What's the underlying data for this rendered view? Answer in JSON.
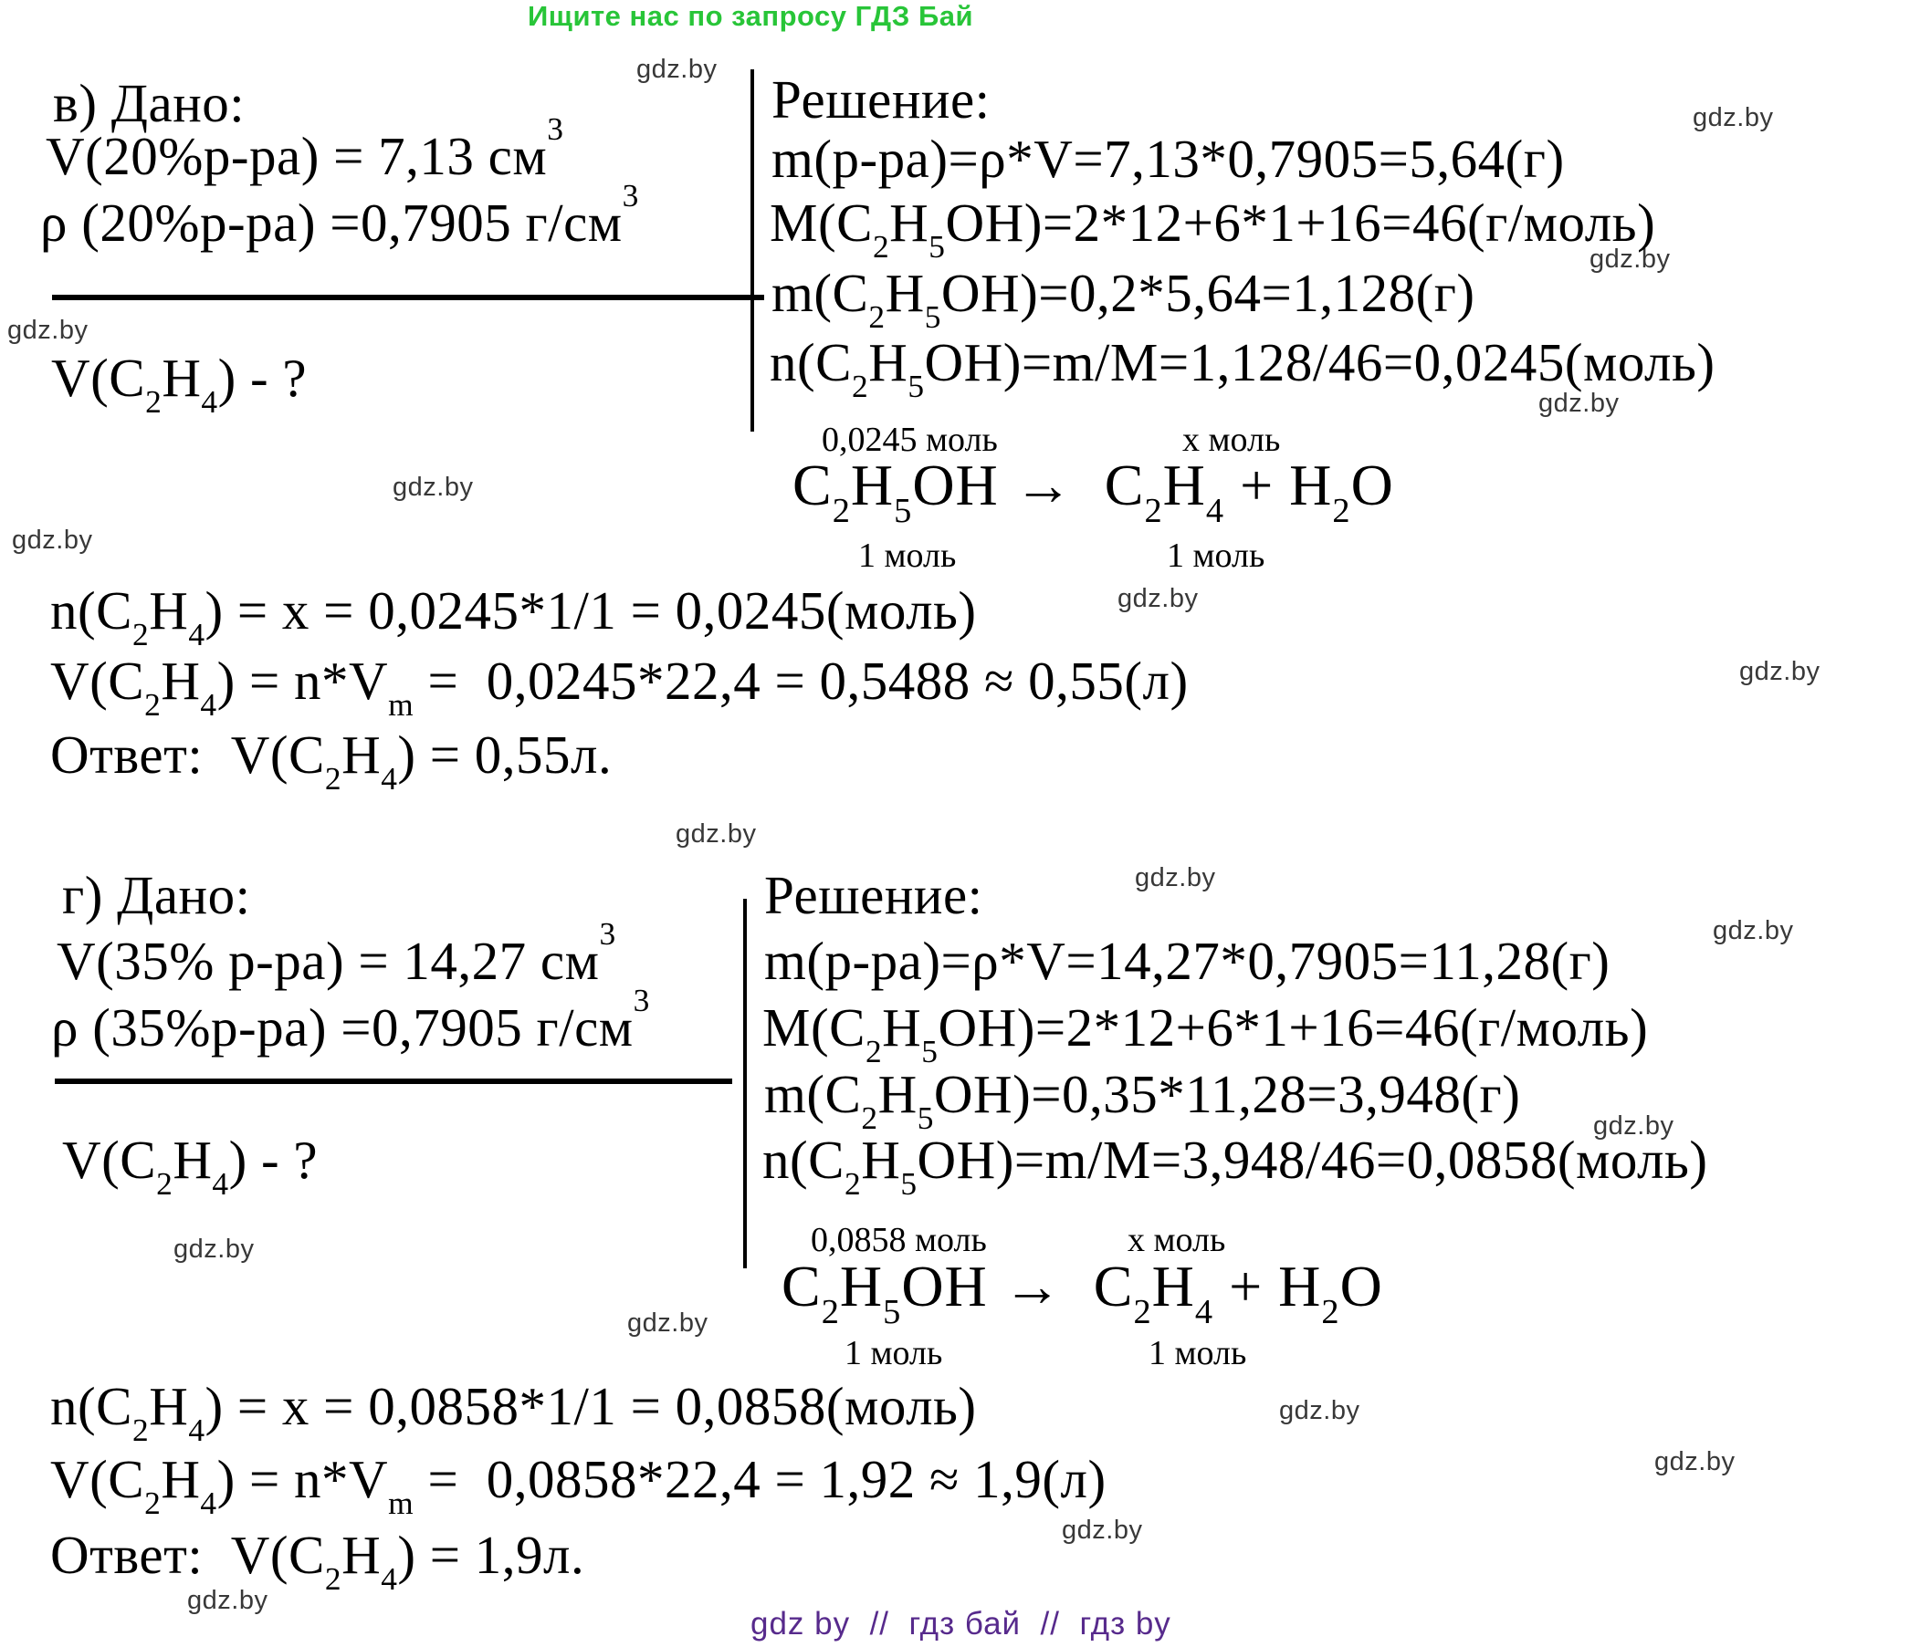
{
  "banner": {
    "text": "Ищите нас по запросу ГДЗ Бай",
    "color": "#28c538"
  },
  "watermark": {
    "text": "gdz.by",
    "color": "#383838"
  },
  "footer": {
    "text": "gdz by  //  гдз бай  //  гдз by",
    "color": "#572a8c"
  },
  "problems": [
    {
      "dano_label": "в) Дано:",
      "given": [
        "V(20%р-ра) = 7,13 см^3^",
        "ρ (20%р-ра) =0,7905 г/см^3^"
      ],
      "find": "V(C_2_H_4_) - ?",
      "solution_label": "Решение:",
      "steps": [
        "m(р-ра)=ρ*V=7,13*0,7905=5,64(г)",
        "M(C_2_H_5_OH)=2*12+6*1+16=46(г/моль)",
        "m(C_2_H_5_OH)=0,2*5,64=1,128(г)",
        "n(C_2_H_5_OH)=m/M=1,128/46=0,0245(моль)"
      ],
      "equation": {
        "above_left": "0,0245 моль",
        "above_right": "x моль",
        "formula": "C_2_H_5_OH →  C_2_H_4_ + H_2_O",
        "below_left": "1 моль",
        "below_right": "1 моль"
      },
      "derivation": [
        "n(C_2_H_4_) = x = 0,0245*1/1 = 0,0245(моль)",
        "V(C_2_H_4_) = n*V_m_ =  0,0245*22,4 = 0,5488 ≈ 0,55(л)"
      ],
      "answer": "Ответ:  V(C_2_H_4_) = 0,55л."
    },
    {
      "dano_label": "г) Дано:",
      "given": [
        "V(35% р-ра) = 14,27 см^3^",
        "ρ (35%р-ра) =0,7905 г/см^3^"
      ],
      "find": "V(C_2_H_4_) - ?",
      "solution_label": "Решение:",
      "steps": [
        "m(р-ра)=ρ*V=14,27*0,7905=11,28(г)",
        "M(C_2_H_5_OH)=2*12+6*1+16=46(г/моль)",
        "m(C_2_H_5_OH)=0,35*11,28=3,948(г)",
        "n(C_2_H_5_OH)=m/M=3,948/46=0,0858(моль)"
      ],
      "equation": {
        "above_left": "0,0858 моль",
        "above_right": "x моль",
        "formula": "C_2_H_5_OH →  C_2_H_4_ + H_2_O",
        "below_left": "1 моль",
        "below_right": "1 моль"
      },
      "derivation": [
        "n(C_2_H_4_) = x = 0,0858*1/1 = 0,0858(моль)",
        "V(C_2_H_4_) = n*V_m_ =  0,0858*22,4 = 1,92 ≈ 1,9(л)"
      ],
      "answer": "Ответ:  V(C_2_H_4_) = 1,9л."
    }
  ]
}
